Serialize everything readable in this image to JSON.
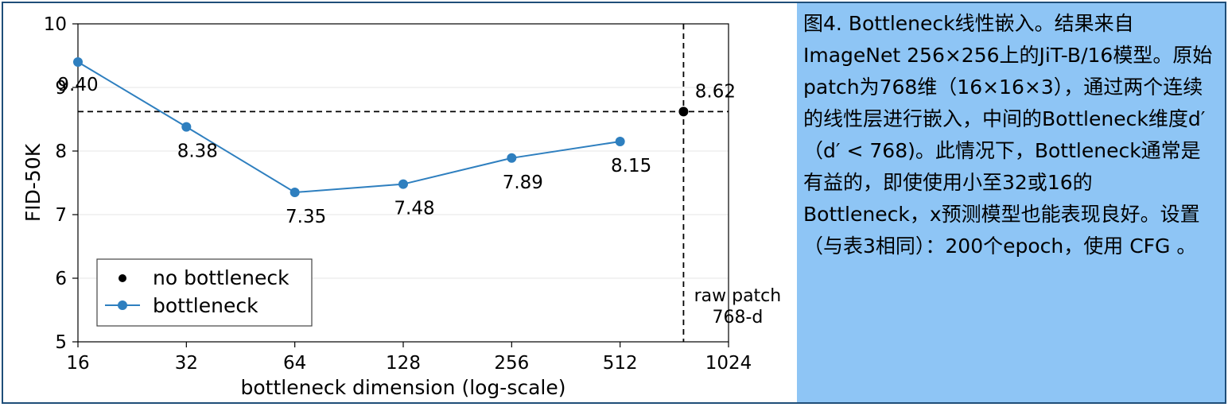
{
  "chart_data": {
    "type": "line",
    "xlabel": "bottleneck dimension (log-scale)",
    "ylabel": "FID-50K",
    "x_scale": "log2",
    "xlim": [
      16,
      1024
    ],
    "ylim": [
      5,
      10
    ],
    "x_ticks": [
      "16",
      "32",
      "64",
      "128",
      "256",
      "512",
      "1024"
    ],
    "y_ticks": [
      "5",
      "6",
      "7",
      "8",
      "9",
      "10"
    ],
    "grid": "horizontal",
    "legend_position": "lower-left",
    "series": [
      {
        "name": "bottleneck",
        "color": "#2e7fbf",
        "x": [
          16,
          32,
          64,
          128,
          256,
          512
        ],
        "y": [
          9.4,
          8.38,
          7.35,
          7.48,
          7.89,
          8.15
        ],
        "labels": [
          "9.40",
          "8.38",
          "7.35",
          "7.48",
          "7.89",
          "8.15"
        ]
      }
    ],
    "reference": {
      "name": "no bottleneck",
      "color": "#000000",
      "x": 768,
      "y": 8.62,
      "label": "8.62",
      "annotation_line1": "raw patch",
      "annotation_line2": "768-d"
    }
  },
  "caption": {
    "text": "图4. Bottleneck线性嵌入。结果来自ImageNet 256×256上的JiT-B/16模型。原始patch为768维（16×16×3），通过两个连续的线性层进行嵌入，中间的Bottleneck维度d′（d′ < 768)。此情况下，Bottleneck通常是有益的，即使使用小至32或16的Bottleneck，x预测模型也能表现良好。设置（与表3相同）：200个epoch，使用 CFG 。"
  }
}
